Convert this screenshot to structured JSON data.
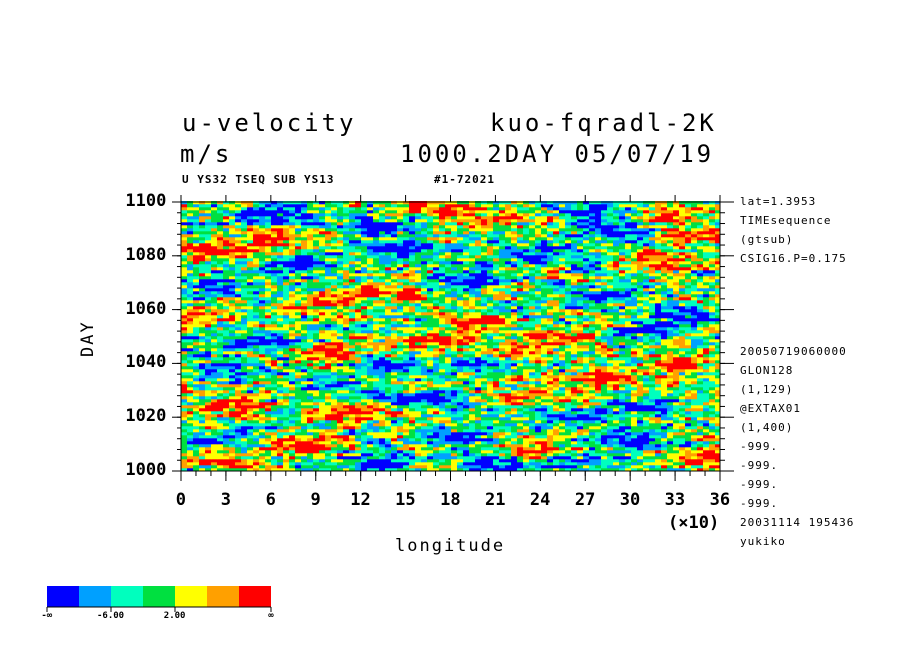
{
  "header": {
    "variable": "u-velocity",
    "experiment": "kuo-fqradl-2K",
    "units": "m/s",
    "time_info": "1000.2DAY 05/07/19",
    "subtitle_left": "U YS32 TSEQ SUB YS13",
    "subtitle_right": "#1-72021"
  },
  "side_info": [
    "lat=1.3953",
    "TIMEsequence",
    "(gtsub)",
    "CSIG16.P=0.175",
    "20050719060000",
    "GLON128",
    "(1,129)",
    "@EXTAX01",
    "(1,400)",
    "-999.",
    "-999.",
    "-999.",
    "-999.",
    "20031114 195436",
    "yukiko"
  ],
  "legend": {
    "colors": [
      "#0000ff",
      "#00a0ff",
      "#00ffbe",
      "#00e040",
      "#ffff00",
      "#ffa000",
      "#ff0000"
    ],
    "labels": [
      "-∞",
      "-6.00",
      "2.00",
      "∞"
    ]
  },
  "chart_data": {
    "type": "heatmap",
    "xlabel": "longitude",
    "ylabel": "DAY",
    "x_multiplier": "(×10)",
    "xlim": [
      0,
      36
    ],
    "ylim": [
      1000,
      1100
    ],
    "x_ticks": [
      "0",
      "3",
      "6",
      "9",
      "12",
      "15",
      "18",
      "21",
      "24",
      "27",
      "30",
      "33",
      "36"
    ],
    "y_ticks": [
      "1000",
      "1020",
      "1040",
      "1060",
      "1080",
      "1100"
    ],
    "palette": [
      "#0000ff",
      "#00a0ff",
      "#00ffbe",
      "#00e040",
      "#ffff00",
      "#ffa000",
      "#ff0000"
    ],
    "features": [
      {
        "x": 17,
        "y": 1097,
        "level": 6
      },
      {
        "x": 21,
        "y": 1094,
        "level": 6
      },
      {
        "x": 6,
        "y": 1095,
        "level": 0
      },
      {
        "x": 13,
        "y": 1090,
        "level": 0
      },
      {
        "x": 29,
        "y": 1089,
        "level": 0
      },
      {
        "x": 35,
        "y": 1087,
        "level": 6
      },
      {
        "x": 2,
        "y": 1082,
        "level": 6
      },
      {
        "x": 24,
        "y": 1080,
        "level": 0
      },
      {
        "x": 32,
        "y": 1077,
        "level": 6
      },
      {
        "x": 8,
        "y": 1077,
        "level": 0
      },
      {
        "x": 3,
        "y": 1068,
        "level": 0
      },
      {
        "x": 19,
        "y": 1071,
        "level": 0
      },
      {
        "x": 9,
        "y": 1062,
        "level": 6
      },
      {
        "x": 14,
        "y": 1066,
        "level": 6
      },
      {
        "x": 28,
        "y": 1065,
        "level": 0
      },
      {
        "x": 34,
        "y": 1058,
        "level": 0
      },
      {
        "x": 1,
        "y": 1058,
        "level": 6
      },
      {
        "x": 20,
        "y": 1055,
        "level": 6
      },
      {
        "x": 5,
        "y": 1048,
        "level": 0
      },
      {
        "x": 17,
        "y": 1049,
        "level": 6
      },
      {
        "x": 25,
        "y": 1050,
        "level": 6
      },
      {
        "x": 31,
        "y": 1052,
        "level": 0
      },
      {
        "x": 20,
        "y": 1040,
        "level": 0
      },
      {
        "x": 14,
        "y": 1039,
        "level": 0
      },
      {
        "x": 28,
        "y": 1034,
        "level": 6
      },
      {
        "x": 33,
        "y": 1040,
        "level": 6
      },
      {
        "x": 3,
        "y": 1037,
        "level": 0
      },
      {
        "x": 10,
        "y": 1032,
        "level": 0
      },
      {
        "x": 4,
        "y": 1024,
        "level": 6
      },
      {
        "x": 16,
        "y": 1027,
        "level": 0
      },
      {
        "x": 23,
        "y": 1028,
        "level": 6
      },
      {
        "x": 31,
        "y": 1024,
        "level": 0
      },
      {
        "x": 11,
        "y": 1022,
        "level": 6
      },
      {
        "x": 26,
        "y": 1020,
        "level": 0
      },
      {
        "x": 2,
        "y": 1012,
        "level": 0
      },
      {
        "x": 8,
        "y": 1010,
        "level": 6
      },
      {
        "x": 18,
        "y": 1012,
        "level": 0
      },
      {
        "x": 24,
        "y": 1008,
        "level": 6
      },
      {
        "x": 30,
        "y": 1011,
        "level": 0
      },
      {
        "x": 35,
        "y": 1005,
        "level": 6
      },
      {
        "x": 3,
        "y": 1004,
        "level": 6
      },
      {
        "x": 13,
        "y": 1003,
        "level": 0
      },
      {
        "x": 21,
        "y": 1002,
        "level": 0
      },
      {
        "x": 27,
        "y": 1004,
        "level": 0
      },
      {
        "x": 10,
        "y": 1044,
        "level": 6
      },
      {
        "x": 23,
        "y": 1044,
        "level": 6
      },
      {
        "x": 6,
        "y": 1086,
        "level": 6
      },
      {
        "x": 15,
        "y": 1082,
        "level": 0
      },
      {
        "x": 27,
        "y": 1097,
        "level": 0
      },
      {
        "x": 33,
        "y": 1095,
        "level": 6
      }
    ]
  }
}
